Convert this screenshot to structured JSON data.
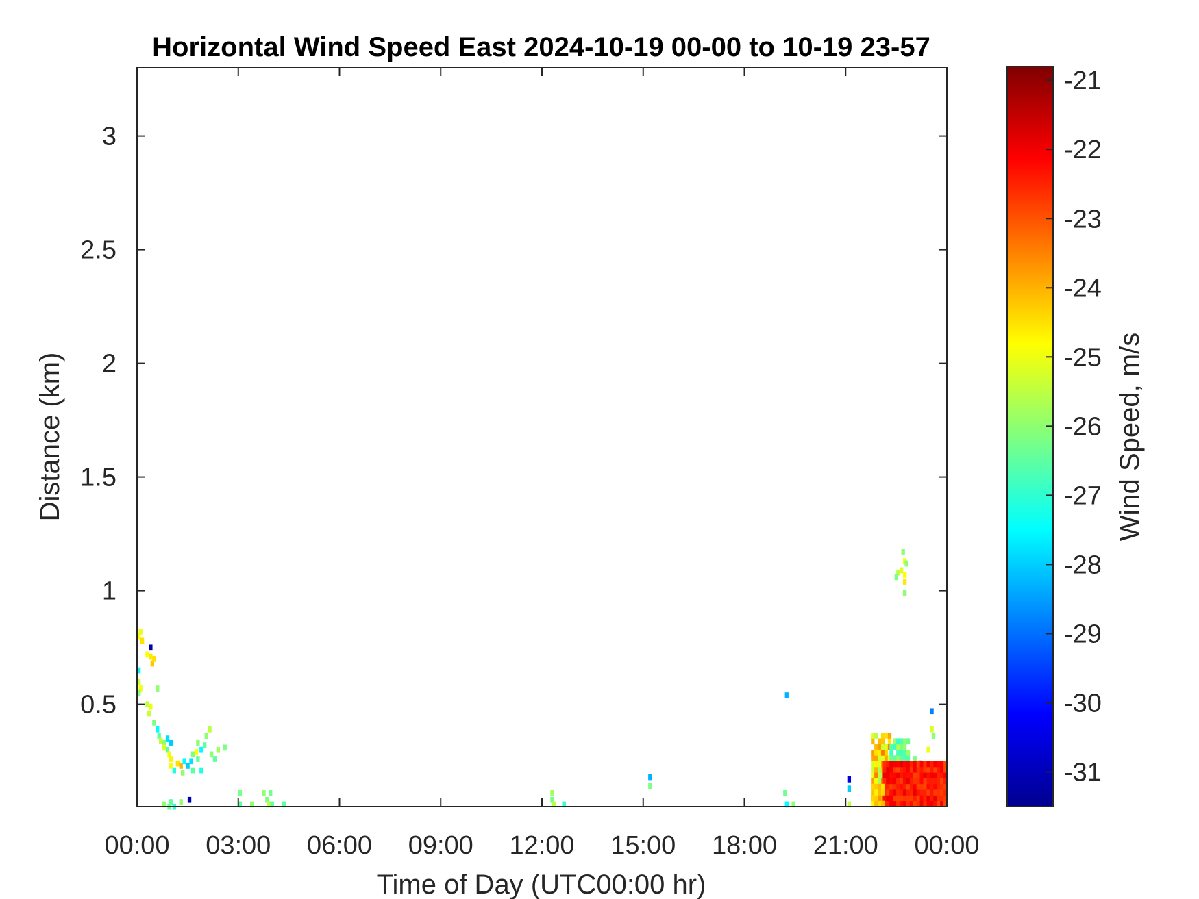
{
  "chart_data": {
    "type": "heatmap",
    "title": "Horizontal Wind Speed East 2024-10-19 00-00 to 10-19 23-57",
    "xlabel": "Time of Day (UTC00:00 hr)",
    "ylabel": "Distance (km)",
    "colorbar_label": "Wind Speed, m/s",
    "x_unit": "hours",
    "xlim": [
      0,
      24
    ],
    "ylim": [
      0.05,
      3.3
    ],
    "clim": [
      -31.5,
      -20.8
    ],
    "colormap": "jet",
    "grid": false,
    "x_ticks": [
      {
        "value": 0,
        "label": "00:00"
      },
      {
        "value": 3,
        "label": "03:00"
      },
      {
        "value": 6,
        "label": "06:00"
      },
      {
        "value": 9,
        "label": "09:00"
      },
      {
        "value": 12,
        "label": "12:00"
      },
      {
        "value": 15,
        "label": "15:00"
      },
      {
        "value": 18,
        "label": "18:00"
      },
      {
        "value": 21,
        "label": "21:00"
      },
      {
        "value": 24,
        "label": "00:00"
      }
    ],
    "y_ticks": [
      {
        "value": 0.5,
        "label": "0.5"
      },
      {
        "value": 1,
        "label": "1"
      },
      {
        "value": 1.5,
        "label": "1.5"
      },
      {
        "value": 2,
        "label": "2"
      },
      {
        "value": 2.5,
        "label": "2.5"
      },
      {
        "value": 3,
        "label": "3"
      }
    ],
    "colorbar_ticks": [
      {
        "value": -21,
        "label": "-21"
      },
      {
        "value": -22,
        "label": "-22"
      },
      {
        "value": -23,
        "label": "-23"
      },
      {
        "value": -24,
        "label": "-24"
      },
      {
        "value": -25,
        "label": "-25"
      },
      {
        "value": -26,
        "label": "-26"
      },
      {
        "value": -27,
        "label": "-27"
      },
      {
        "value": -28,
        "label": "-28"
      },
      {
        "value": -29,
        "label": "-29"
      },
      {
        "value": -30,
        "label": "-30"
      },
      {
        "value": -31,
        "label": "-31"
      }
    ],
    "cell": {
      "dt": 0.1,
      "dz": 0.025
    },
    "points": [
      [
        0.0,
        0.8,
        -24.8
      ],
      [
        0.05,
        0.82,
        -25.0
      ],
      [
        0.1,
        0.78,
        -24.5
      ],
      [
        0.0,
        0.65,
        -27.5
      ],
      [
        0.0,
        0.6,
        -25.3
      ],
      [
        0.05,
        0.57,
        -25.0
      ],
      [
        0.0,
        0.55,
        -26.0
      ],
      [
        0.35,
        0.75,
        -31.0
      ],
      [
        0.25,
        0.72,
        -24.8
      ],
      [
        0.35,
        0.71,
        -24.6
      ],
      [
        0.4,
        0.68,
        -24.2
      ],
      [
        0.45,
        0.7,
        -24.5
      ],
      [
        0.55,
        0.57,
        -26.0
      ],
      [
        0.25,
        0.5,
        -25.5
      ],
      [
        0.35,
        0.49,
        -25.0
      ],
      [
        0.3,
        0.46,
        -25.4
      ],
      [
        0.45,
        0.42,
        -26.2
      ],
      [
        0.55,
        0.39,
        -27.5
      ],
      [
        0.6,
        0.36,
        -26.5
      ],
      [
        0.65,
        0.34,
        -25.5
      ],
      [
        0.75,
        0.33,
        -26.0
      ],
      [
        0.85,
        0.35,
        -27.8
      ],
      [
        0.95,
        0.33,
        -28.0
      ],
      [
        0.75,
        0.31,
        -25.2
      ],
      [
        0.85,
        0.3,
        -26.5
      ],
      [
        0.9,
        0.28,
        -25.0
      ],
      [
        0.95,
        0.26,
        -24.7
      ],
      [
        0.95,
        0.23,
        -24.9
      ],
      [
        1.05,
        0.21,
        -27.2
      ],
      [
        1.15,
        0.24,
        -24.5
      ],
      [
        1.25,
        0.23,
        -24.0
      ],
      [
        1.35,
        0.25,
        -27.5
      ],
      [
        1.45,
        0.23,
        -28.0
      ],
      [
        1.55,
        0.25,
        -27.8
      ],
      [
        1.6,
        0.28,
        -26.2
      ],
      [
        1.7,
        0.29,
        -24.8
      ],
      [
        1.75,
        0.33,
        -26.0
      ],
      [
        1.85,
        0.3,
        -27.5
      ],
      [
        1.95,
        0.32,
        -26.5
      ],
      [
        2.0,
        0.36,
        -26.0
      ],
      [
        2.1,
        0.39,
        -25.5
      ],
      [
        1.75,
        0.26,
        -26.5
      ],
      [
        1.85,
        0.21,
        -27.2
      ],
      [
        2.15,
        0.28,
        -26.0
      ],
      [
        2.25,
        0.26,
        -26.5
      ],
      [
        2.35,
        0.3,
        -25.8
      ],
      [
        2.55,
        0.31,
        -26.2
      ],
      [
        1.6,
        0.21,
        -26.5
      ],
      [
        1.3,
        0.2,
        -26.0
      ],
      [
        1.5,
        0.08,
        -31.0
      ],
      [
        0.75,
        0.06,
        -26.0
      ],
      [
        0.95,
        0.07,
        -26.5
      ],
      [
        1.05,
        0.05,
        -27.0
      ],
      [
        1.25,
        0.07,
        -26.0
      ],
      [
        0.9,
        0.05,
        -26.3
      ],
      [
        3.0,
        0.11,
        -26.2
      ],
      [
        3.0,
        0.06,
        -26.5
      ],
      [
        3.35,
        0.06,
        -26.0
      ],
      [
        3.7,
        0.11,
        -26.0
      ],
      [
        3.8,
        0.08,
        -26.2
      ],
      [
        3.85,
        0.06,
        -25.5
      ],
      [
        3.9,
        0.11,
        -26.3
      ],
      [
        3.95,
        0.06,
        -26.5
      ],
      [
        4.3,
        0.06,
        -26.5
      ],
      [
        12.25,
        0.11,
        -25.8
      ],
      [
        12.25,
        0.08,
        -26.3
      ],
      [
        12.3,
        0.06,
        -25.5
      ],
      [
        12.6,
        0.06,
        -27.0
      ],
      [
        15.15,
        0.18,
        -28.3
      ],
      [
        15.15,
        0.14,
        -26.2
      ],
      [
        19.2,
        0.54,
        -28.3
      ],
      [
        19.15,
        0.11,
        -26.3
      ],
      [
        19.2,
        0.06,
        -27.5
      ],
      [
        19.4,
        0.06,
        -26.0
      ],
      [
        21.05,
        0.17,
        -30.5
      ],
      [
        21.05,
        0.13,
        -28.0
      ],
      [
        21.05,
        0.06,
        -25.5
      ],
      [
        22.65,
        1.17,
        -26.0
      ],
      [
        22.7,
        1.13,
        -25.0
      ],
      [
        22.75,
        1.12,
        -26.0
      ],
      [
        22.5,
        1.08,
        -25.5
      ],
      [
        22.6,
        1.09,
        -25.2
      ],
      [
        22.7,
        1.07,
        -24.8
      ],
      [
        22.45,
        1.06,
        -26.2
      ],
      [
        22.7,
        1.04,
        -24.6
      ],
      [
        22.7,
        0.99,
        -26.0
      ],
      [
        23.5,
        0.47,
        -28.8
      ],
      [
        23.5,
        0.39,
        -25.2
      ],
      [
        23.55,
        0.36,
        -26.0
      ],
      [
        23.4,
        0.3,
        -25.0
      ],
      [
        23.0,
        0.26,
        -26.2
      ],
      [
        23.15,
        0.24,
        -28.5
      ]
    ],
    "regions": [
      {
        "t0": 21.75,
        "t1": 22.3,
        "z0": 0.05,
        "z1": 0.37,
        "mean": -24.6,
        "spread": 2.4
      },
      {
        "t0": 22.3,
        "t1": 22.9,
        "z0": 0.25,
        "z1": 0.35,
        "mean": -26.3,
        "spread": 1.5
      },
      {
        "t0": 22.1,
        "t1": 24.0,
        "z0": 0.05,
        "z1": 0.25,
        "mean": -22.4,
        "spread": 1.0
      },
      {
        "t0": 21.75,
        "t1": 22.1,
        "z0": 0.05,
        "z1": 0.15,
        "mean": -24.2,
        "spread": 1.2
      }
    ]
  }
}
